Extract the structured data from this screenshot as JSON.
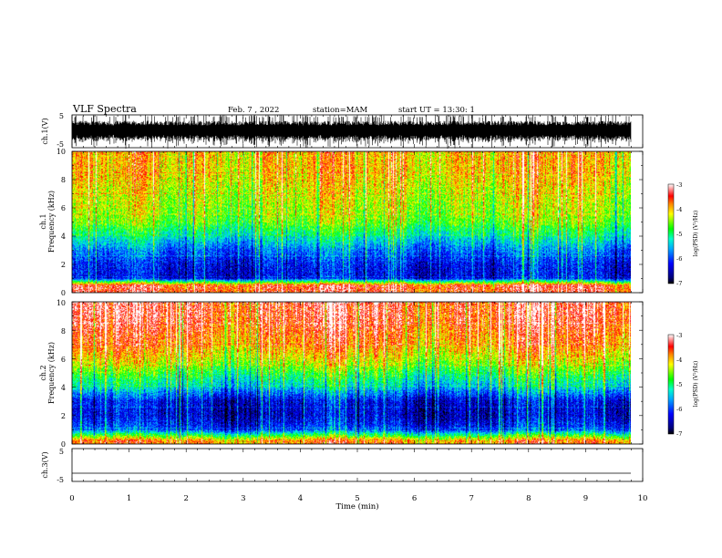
{
  "header": {
    "title": "VLF Spectra",
    "date": "Feb. 7 , 2022",
    "station": "station=MAM",
    "start": "start UT =  13:30: 1"
  },
  "colorbar": {
    "label": "log(PSD) (V²/Hz)",
    "ticks": [
      "-3",
      "-4",
      "-5",
      "-6",
      "-7"
    ],
    "range": [
      -7,
      -3
    ]
  },
  "chart_data": [
    {
      "type": "line",
      "panel": "ch1-waveform",
      "ylabel": "ch.1(V)",
      "ylim": [
        -5,
        5
      ],
      "yticks": [
        "5",
        "-5"
      ],
      "xlim": [
        0,
        10
      ],
      "description_values": "dense broadband noise waveform spanning roughly -5 to 5 V across full time range"
    },
    {
      "type": "heatmap",
      "panel": "ch1-spectrogram",
      "ylabel": "Frequency (kHz)",
      "channel_label": "ch.1",
      "ylim": [
        0,
        10
      ],
      "yticks": [
        "0",
        "2",
        "4",
        "6",
        "8",
        "10"
      ],
      "xlim": [
        0,
        9.8
      ],
      "zlim": [
        -7,
        -3
      ],
      "mean_log_psd_by_freq_kHz": [
        [
          0.5,
          -3.5
        ],
        [
          1,
          -6.3
        ],
        [
          2,
          -6.2
        ],
        [
          3,
          -5.8
        ],
        [
          4,
          -5.2
        ],
        [
          5,
          -4.6
        ],
        [
          6,
          -4.4
        ],
        [
          7,
          -4.3
        ],
        [
          8,
          -4.1
        ],
        [
          9,
          -4.0
        ],
        [
          10,
          -4.0
        ]
      ]
    },
    {
      "type": "heatmap",
      "panel": "ch2-spectrogram",
      "ylabel": "Frequency (kHz)",
      "channel_label": "ch.2",
      "ylim": [
        0,
        10
      ],
      "yticks": [
        "0",
        "2",
        "4",
        "6",
        "8",
        "10"
      ],
      "xlim": [
        0,
        9.8
      ],
      "zlim": [
        -7,
        -3
      ],
      "mean_log_psd_by_freq_kHz": [
        [
          0.2,
          -3.8
        ],
        [
          1,
          -6.0
        ],
        [
          2,
          -6.4
        ],
        [
          3,
          -6.3
        ],
        [
          4,
          -5.4
        ],
        [
          5,
          -4.8
        ],
        [
          6,
          -4.2
        ],
        [
          7,
          -3.8
        ],
        [
          8,
          -3.6
        ],
        [
          9,
          -3.4
        ],
        [
          10,
          -3.4
        ]
      ]
    },
    {
      "type": "line",
      "panel": "ch3-waveform",
      "ylabel": "ch.3(V)",
      "ylim": [
        -5,
        5
      ],
      "yticks": [
        "5",
        "-5"
      ],
      "xlim": [
        0,
        10
      ],
      "flat_level": -2.5
    }
  ],
  "xaxis": {
    "label": "Time (min)",
    "ticks": [
      "0",
      "1",
      "2",
      "3",
      "4",
      "5",
      "6",
      "7",
      "8",
      "9",
      "10"
    ]
  }
}
